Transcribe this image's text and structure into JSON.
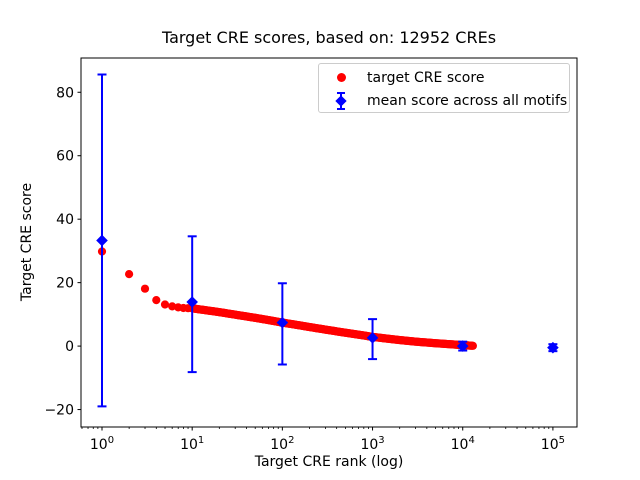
{
  "figure": {
    "title": "Target CRE scores, based on: 12952 CREs",
    "xlabel": "Target CRE rank (log)",
    "ylabel": "Target CRE score",
    "total_cres_in_title": "12952"
  },
  "chart_data": {
    "type": "scatter",
    "title": "Target CRE scores, based on: 12952 CREs",
    "xlabel": "Target CRE rank (log)",
    "ylabel": "Target CRE score",
    "x_scale": "log",
    "xlim": [
      0.585,
      185000
    ],
    "ylim": [
      -25.5,
      90.8
    ],
    "yticks": [
      -20,
      0,
      20,
      40,
      60,
      80
    ],
    "xtick_exponents": [
      0,
      1,
      2,
      3,
      4,
      5
    ],
    "grid": false,
    "colors": {
      "target": "#ff0000",
      "mean": "#0000ff",
      "frame": "#000000",
      "legend_edge": "#cccccc"
    },
    "series": [
      {
        "name": "target CRE score",
        "kind": "dense-scatter",
        "marker": "circle",
        "color": "#ff0000",
        "rank_range": [
          1,
          12952
        ],
        "anchors": [
          [
            1,
            29.8
          ],
          [
            2,
            22.7
          ],
          [
            3,
            18.1
          ],
          [
            4,
            14.5
          ],
          [
            5,
            13.1
          ],
          [
            6,
            12.5
          ],
          [
            7,
            12.2
          ],
          [
            8,
            12.0
          ],
          [
            9,
            11.95
          ],
          [
            10,
            11.9
          ],
          [
            15,
            11.2
          ],
          [
            20,
            10.7
          ],
          [
            30,
            9.9
          ],
          [
            50,
            8.9
          ],
          [
            70,
            8.2
          ],
          [
            100,
            7.4
          ],
          [
            150,
            6.6
          ],
          [
            200,
            6.0
          ],
          [
            300,
            5.2
          ],
          [
            500,
            4.2
          ],
          [
            700,
            3.6
          ],
          [
            1000,
            2.9
          ],
          [
            1500,
            2.3
          ],
          [
            2000,
            1.9
          ],
          [
            3000,
            1.4
          ],
          [
            5000,
            0.9
          ],
          [
            8000,
            0.5
          ],
          [
            10000,
            0.3
          ],
          [
            12952,
            0.1
          ]
        ]
      },
      {
        "name": "mean score across all motifs",
        "kind": "errorbar",
        "marker": "diamond",
        "color": "#0000ff",
        "points": [
          {
            "rank": 1,
            "mean": 33.3,
            "lo": -19.0,
            "hi": 85.6
          },
          {
            "rank": 10,
            "mean": 13.9,
            "lo": -8.2,
            "hi": 34.6
          },
          {
            "rank": 100,
            "mean": 7.4,
            "lo": -5.8,
            "hi": 19.8
          },
          {
            "rank": 1000,
            "mean": 2.6,
            "lo": -4.1,
            "hi": 8.5
          },
          {
            "rank": 10000,
            "mean": 0.0,
            "lo": -1.4,
            "hi": 1.4
          },
          {
            "rank": 100000,
            "mean": -0.5,
            "lo": -1.6,
            "hi": 0.6
          }
        ]
      }
    ],
    "legend": {
      "position": "upper right",
      "entries": [
        {
          "label": "target CRE score",
          "marker": "circle",
          "color": "#ff0000"
        },
        {
          "label": "mean score across all motifs",
          "marker": "diamond",
          "color": "#0000ff"
        }
      ]
    }
  }
}
